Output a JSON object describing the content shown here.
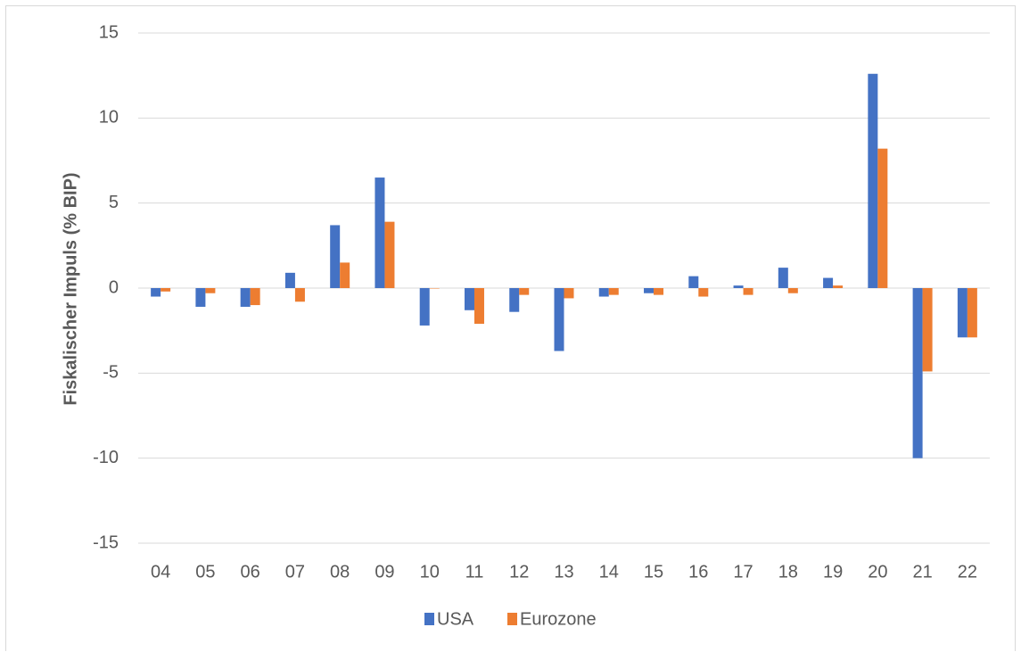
{
  "chart_data": {
    "type": "bar",
    "title": "",
    "xlabel": "",
    "ylabel": "Fiskalischer Impuls (% BIP)",
    "ylim": [
      -15,
      15
    ],
    "yticks": [
      -15,
      -10,
      -5,
      0,
      5,
      10,
      15
    ],
    "grid": true,
    "legend_position": "bottom",
    "categories": [
      "04",
      "05",
      "06",
      "07",
      "08",
      "09",
      "10",
      "11",
      "12",
      "13",
      "14",
      "15",
      "16",
      "17",
      "18",
      "19",
      "20",
      "21",
      "22"
    ],
    "series": [
      {
        "name": "USA",
        "color": "#4472c4",
        "values": [
          -0.5,
          -1.1,
          -1.1,
          0.9,
          3.7,
          6.5,
          -2.2,
          -1.3,
          -1.4,
          -3.7,
          -0.5,
          -0.3,
          0.7,
          0.15,
          1.2,
          0.6,
          12.6,
          -10.0,
          -2.9
        ]
      },
      {
        "name": "Eurozone",
        "color": "#ed7d31",
        "values": [
          -0.2,
          -0.3,
          -1.0,
          -0.8,
          1.5,
          3.9,
          0.0,
          -2.1,
          -0.4,
          -0.6,
          -0.4,
          -0.4,
          -0.5,
          -0.4,
          -0.3,
          0.15,
          8.2,
          -4.9,
          -2.9
        ]
      }
    ]
  }
}
